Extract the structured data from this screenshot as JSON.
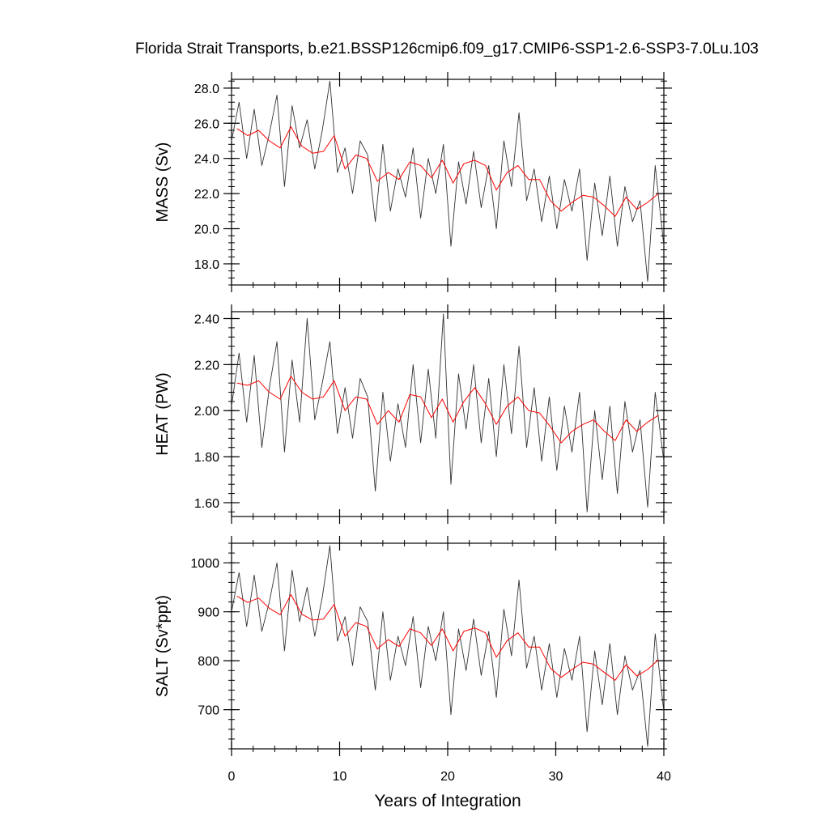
{
  "figure": {
    "title": "Florida Strait Transports, b.e21.BSSP126cmip6.f09_g17.CMIP6-SSP1-2.6-SSP3-7.0Lu.103",
    "xlabel": "Years of Integration"
  },
  "colors": {
    "raw": "#333333",
    "smooth": "#ff0000",
    "axes": "#000000"
  },
  "chart_data": [
    {
      "type": "line",
      "panel": "mass",
      "ylabel": "MASS (Sv)",
      "xlim": [
        0,
        40
      ],
      "ylim": [
        16.8,
        28.5
      ],
      "xticks": [
        0,
        10,
        20,
        30,
        40
      ],
      "yticks": [
        18.0,
        20.0,
        22.0,
        24.0,
        26.0,
        28.0
      ],
      "ytick_labels": [
        "18.0",
        "20.0",
        "22.0",
        "24.0",
        "26.0",
        "28.0"
      ],
      "grid": false,
      "series": [
        {
          "role": "monthly",
          "x": [
            0.0,
            0.7,
            1.4,
            2.1,
            2.8,
            3.5,
            4.2,
            4.9,
            5.6,
            6.3,
            7.0,
            7.7,
            8.4,
            9.1,
            9.8,
            10.5,
            11.2,
            11.9,
            12.6,
            13.3,
            14.0,
            14.7,
            15.4,
            16.1,
            16.8,
            17.5,
            18.2,
            18.9,
            19.6,
            20.3,
            21.0,
            21.7,
            22.4,
            23.1,
            23.8,
            24.5,
            25.2,
            25.9,
            26.6,
            27.3,
            28.0,
            28.7,
            29.4,
            30.1,
            30.8,
            31.5,
            32.2,
            32.9,
            33.6,
            34.3,
            35.0,
            35.7,
            36.4,
            37.1,
            37.8,
            38.5,
            39.2,
            40.0
          ],
          "y": [
            25.0,
            27.2,
            24.0,
            26.8,
            23.6,
            25.4,
            27.6,
            22.4,
            27.0,
            24.6,
            26.2,
            23.4,
            25.6,
            28.4,
            23.2,
            24.6,
            22.0,
            25.0,
            24.2,
            20.4,
            24.8,
            21.0,
            23.4,
            21.8,
            24.6,
            20.6,
            24.0,
            22.0,
            24.8,
            19.0,
            23.8,
            21.4,
            24.4,
            21.2,
            23.6,
            20.0,
            25.0,
            22.4,
            26.6,
            21.6,
            23.4,
            20.4,
            23.0,
            20.0,
            22.8,
            21.0,
            23.4,
            18.2,
            22.6,
            19.6,
            23.0,
            19.0,
            22.4,
            20.4,
            21.6,
            17.0,
            23.6,
            19.0
          ]
        },
        {
          "role": "annual",
          "x": [
            0.5,
            1.5,
            2.5,
            3.5,
            4.5,
            5.5,
            6.5,
            7.5,
            8.5,
            9.5,
            10.5,
            11.5,
            12.5,
            13.5,
            14.5,
            15.5,
            16.5,
            17.5,
            18.5,
            19.5,
            20.5,
            21.5,
            22.5,
            23.5,
            24.5,
            25.5,
            26.5,
            27.5,
            28.5,
            29.5,
            30.5,
            31.5,
            32.5,
            33.5,
            34.5,
            35.5,
            36.5,
            37.5,
            38.5,
            39.5
          ],
          "y": [
            25.7,
            25.3,
            25.6,
            25.0,
            24.6,
            25.8,
            24.7,
            24.3,
            24.4,
            25.3,
            23.4,
            24.2,
            24.0,
            22.7,
            23.2,
            22.8,
            23.8,
            23.6,
            22.9,
            23.9,
            22.6,
            23.7,
            23.9,
            23.6,
            22.2,
            23.2,
            23.6,
            22.8,
            22.8,
            21.6,
            21.0,
            21.5,
            21.9,
            21.8,
            21.3,
            20.7,
            21.8,
            21.1,
            21.5,
            22.0
          ]
        }
      ]
    },
    {
      "type": "line",
      "panel": "heat",
      "ylabel": "HEAT (PW)",
      "xlim": [
        0,
        40
      ],
      "ylim": [
        1.54,
        2.43
      ],
      "xticks": [
        0,
        10,
        20,
        30,
        40
      ],
      "yticks": [
        1.6,
        1.8,
        2.0,
        2.2,
        2.4
      ],
      "ytick_labels": [
        "1.60",
        "1.80",
        "2.00",
        "2.20",
        "2.40"
      ],
      "grid": false,
      "series": [
        {
          "role": "monthly",
          "x": [
            0.0,
            0.7,
            1.4,
            2.1,
            2.8,
            3.5,
            4.2,
            4.9,
            5.6,
            6.3,
            7.0,
            7.7,
            8.4,
            9.1,
            9.8,
            10.5,
            11.2,
            11.9,
            12.6,
            13.3,
            14.0,
            14.7,
            15.4,
            16.1,
            16.8,
            17.5,
            18.2,
            18.9,
            19.6,
            20.3,
            21.0,
            21.7,
            22.4,
            23.1,
            23.8,
            24.5,
            25.2,
            25.9,
            26.6,
            27.3,
            28.0,
            28.7,
            29.4,
            30.1,
            30.8,
            31.5,
            32.2,
            32.9,
            33.6,
            34.3,
            35.0,
            35.7,
            36.4,
            37.1,
            37.8,
            38.5,
            39.2,
            40.0
          ],
          "y": [
            2.02,
            2.25,
            1.95,
            2.24,
            1.84,
            2.1,
            2.3,
            1.82,
            2.22,
            1.95,
            2.4,
            1.96,
            2.12,
            2.3,
            1.9,
            2.1,
            1.88,
            2.14,
            2.06,
            1.65,
            2.08,
            1.78,
            2.03,
            1.84,
            2.2,
            1.86,
            2.18,
            1.88,
            2.42,
            1.68,
            2.16,
            1.92,
            2.2,
            1.86,
            2.14,
            1.8,
            2.2,
            1.9,
            2.28,
            1.84,
            2.1,
            1.78,
            2.06,
            1.74,
            2.02,
            1.82,
            2.08,
            1.56,
            2.0,
            1.7,
            2.02,
            1.64,
            2.04,
            1.82,
            1.96,
            1.58,
            2.08,
            1.78
          ]
        },
        {
          "role": "annual",
          "x": [
            0.5,
            1.5,
            2.5,
            3.5,
            4.5,
            5.5,
            6.5,
            7.5,
            8.5,
            9.5,
            10.5,
            11.5,
            12.5,
            13.5,
            14.5,
            15.5,
            16.5,
            17.5,
            18.5,
            19.5,
            20.5,
            21.5,
            22.5,
            23.5,
            24.5,
            25.5,
            26.5,
            27.5,
            28.5,
            29.5,
            30.5,
            31.5,
            32.5,
            33.5,
            34.5,
            35.5,
            36.5,
            37.5,
            38.5,
            39.5
          ],
          "y": [
            2.12,
            2.11,
            2.13,
            2.08,
            2.05,
            2.15,
            2.08,
            2.05,
            2.06,
            2.13,
            2.0,
            2.06,
            2.05,
            1.94,
            2.0,
            1.95,
            2.07,
            2.06,
            1.97,
            2.05,
            1.95,
            2.04,
            2.1,
            2.03,
            1.94,
            2.02,
            2.06,
            2.0,
            1.99,
            1.93,
            1.86,
            1.91,
            1.94,
            1.96,
            1.91,
            1.87,
            1.96,
            1.91,
            1.95,
            1.98
          ]
        }
      ]
    },
    {
      "type": "line",
      "panel": "salt",
      "ylabel": "SALT (Sv*ppt)",
      "xlim": [
        0,
        40
      ],
      "ylim": [
        620,
        1040
      ],
      "xticks": [
        0,
        10,
        20,
        30,
        40
      ],
      "yticks": [
        700,
        800,
        900,
        1000
      ],
      "ytick_labels": [
        "700",
        "800",
        "900",
        "1000"
      ],
      "grid": false,
      "series": [
        {
          "role": "monthly",
          "x": [
            0.0,
            0.7,
            1.4,
            2.1,
            2.8,
            3.5,
            4.2,
            4.9,
            5.6,
            6.3,
            7.0,
            7.7,
            8.4,
            9.1,
            9.8,
            10.5,
            11.2,
            11.9,
            12.6,
            13.3,
            14.0,
            14.7,
            15.4,
            16.1,
            16.8,
            17.5,
            18.2,
            18.9,
            19.6,
            20.3,
            21.0,
            21.7,
            22.4,
            23.1,
            23.8,
            24.5,
            25.2,
            25.9,
            26.6,
            27.3,
            28.0,
            28.7,
            29.4,
            30.1,
            30.8,
            31.5,
            32.2,
            32.9,
            33.6,
            34.3,
            35.0,
            35.7,
            36.4,
            37.1,
            37.8,
            38.5,
            39.2,
            40.0
          ],
          "y": [
            900,
            980,
            870,
            975,
            860,
            920,
            1000,
            820,
            985,
            880,
            950,
            850,
            930,
            1035,
            840,
            890,
            790,
            910,
            880,
            740,
            900,
            760,
            850,
            790,
            890,
            745,
            870,
            800,
            900,
            690,
            865,
            780,
            885,
            770,
            860,
            725,
            905,
            810,
            965,
            785,
            850,
            740,
            835,
            725,
            825,
            760,
            850,
            655,
            820,
            710,
            835,
            690,
            810,
            740,
            780,
            625,
            855,
            695
          ]
        },
        {
          "role": "annual",
          "x": [
            0.5,
            1.5,
            2.5,
            3.5,
            4.5,
            5.5,
            6.5,
            7.5,
            8.5,
            9.5,
            10.5,
            11.5,
            12.5,
            13.5,
            14.5,
            15.5,
            16.5,
            17.5,
            18.5,
            19.5,
            20.5,
            21.5,
            22.5,
            23.5,
            24.5,
            25.5,
            26.5,
            27.5,
            28.5,
            29.5,
            30.5,
            31.5,
            32.5,
            33.5,
            34.5,
            35.5,
            36.5,
            37.5,
            38.5,
            39.5
          ],
          "y": [
            932,
            919,
            928,
            907,
            894,
            935,
            895,
            883,
            885,
            915,
            850,
            878,
            870,
            824,
            843,
            829,
            865,
            857,
            831,
            865,
            820,
            860,
            867,
            857,
            807,
            841,
            857,
            828,
            828,
            785,
            766,
            782,
            797,
            793,
            776,
            760,
            792,
            769,
            782,
            802
          ]
        }
      ]
    }
  ]
}
